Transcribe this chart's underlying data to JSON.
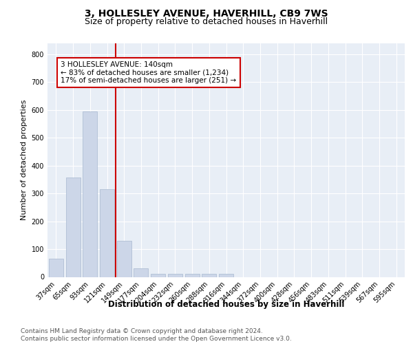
{
  "title1": "3, HOLLESLEY AVENUE, HAVERHILL, CB9 7WS",
  "title2": "Size of property relative to detached houses in Haverhill",
  "xlabel": "Distribution of detached houses by size in Haverhill",
  "ylabel": "Number of detached properties",
  "bar_labels": [
    "37sqm",
    "65sqm",
    "93sqm",
    "121sqm",
    "149sqm",
    "177sqm",
    "204sqm",
    "232sqm",
    "260sqm",
    "288sqm",
    "316sqm",
    "344sqm",
    "372sqm",
    "400sqm",
    "428sqm",
    "456sqm",
    "483sqm",
    "511sqm",
    "539sqm",
    "567sqm",
    "595sqm"
  ],
  "bar_values": [
    65,
    358,
    595,
    315,
    130,
    30,
    10,
    10,
    10,
    10,
    10,
    0,
    0,
    0,
    0,
    0,
    0,
    0,
    0,
    0,
    0
  ],
  "bar_color": "#ccd6e8",
  "bar_edge_color": "#b0bfd4",
  "reference_line_color": "#cc0000",
  "annotation_text": "3 HOLLESLEY AVENUE: 140sqm\n← 83% of detached houses are smaller (1,234)\n17% of semi-detached houses are larger (251) →",
  "annotation_box_color": "#ffffff",
  "annotation_box_edge_color": "#cc0000",
  "ylim": [
    0,
    840
  ],
  "yticks": [
    0,
    100,
    200,
    300,
    400,
    500,
    600,
    700,
    800
  ],
  "footnote": "Contains HM Land Registry data © Crown copyright and database right 2024.\nContains public sector information licensed under the Open Government Licence v3.0.",
  "plot_bg_color": "#e8eef6",
  "title1_fontsize": 10,
  "title2_fontsize": 9,
  "xlabel_fontsize": 8.5,
  "ylabel_fontsize": 8,
  "tick_fontsize": 7,
  "footnote_fontsize": 6.5,
  "annotation_fontsize": 7.5
}
